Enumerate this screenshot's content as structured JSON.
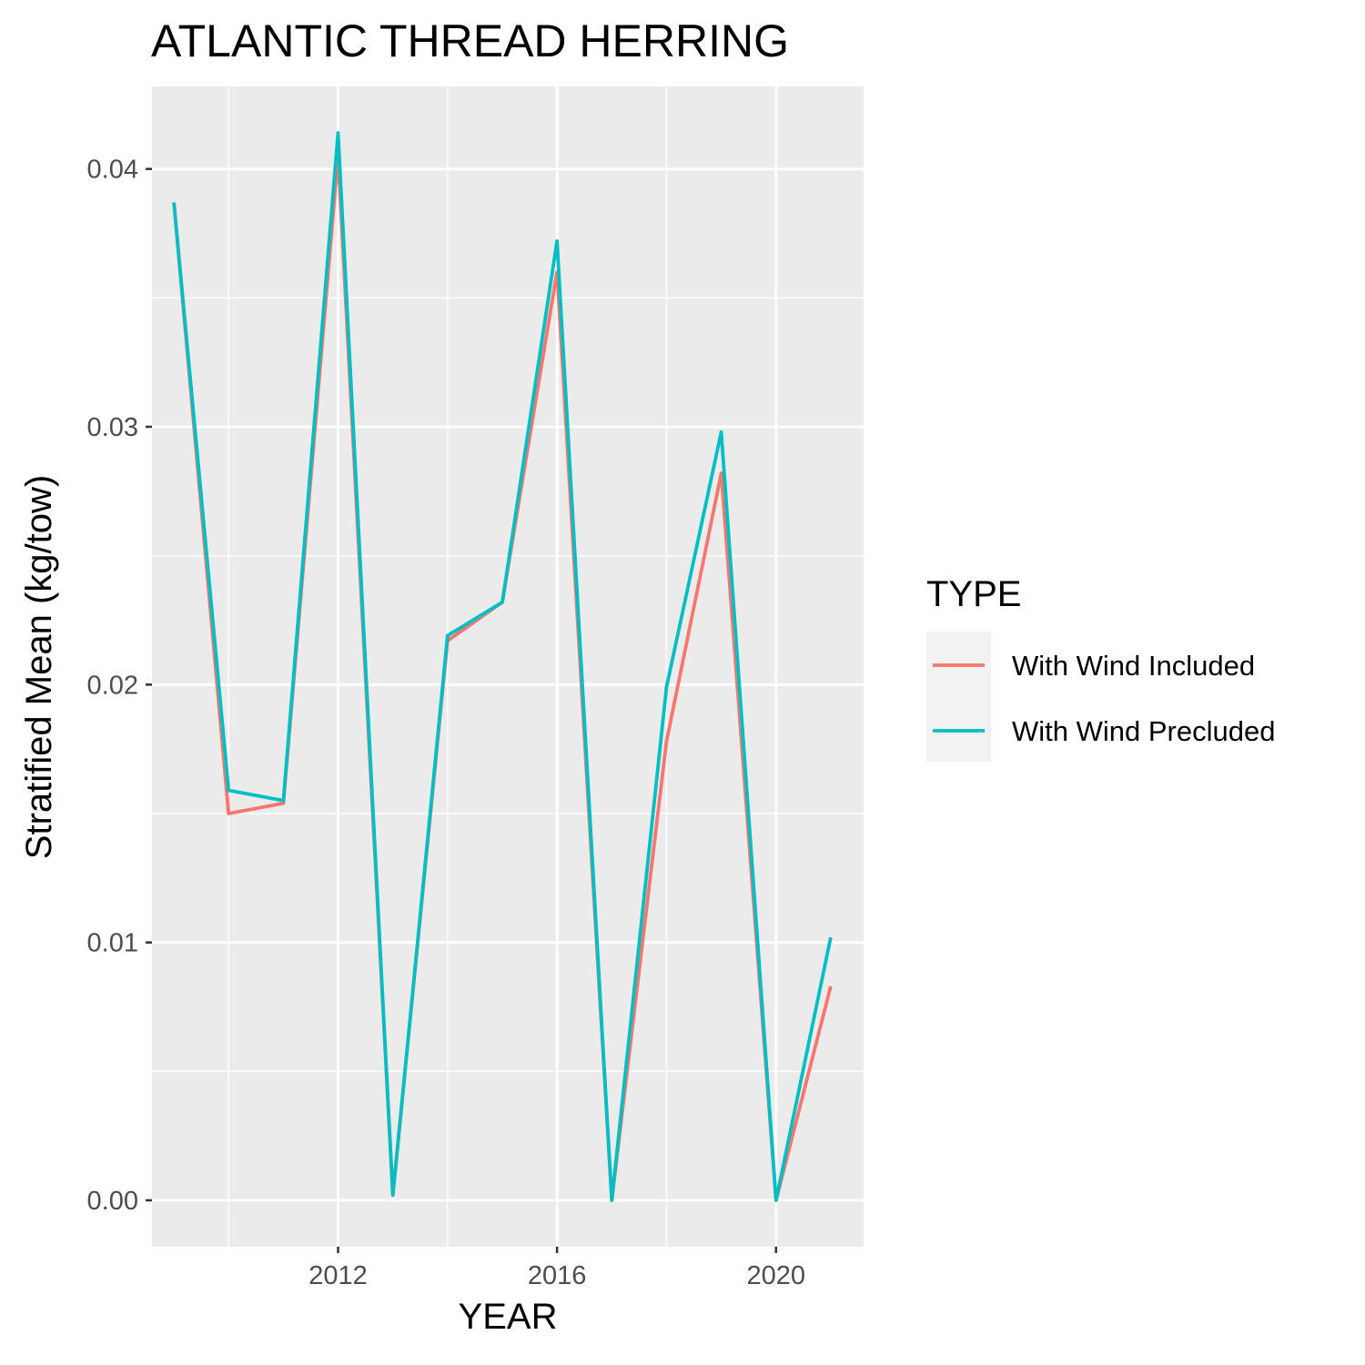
{
  "chart_data": {
    "type": "line",
    "title": "ATLANTIC THREAD HERRING",
    "xlabel": "YEAR",
    "ylabel": "Stratified Mean (kg/tow)",
    "xlim": [
      2008.6,
      2021.6
    ],
    "ylim": [
      -0.0018,
      0.0432
    ],
    "x_ticks": [
      2012,
      2016,
      2020
    ],
    "y_ticks": [
      0.0,
      0.01,
      0.02,
      0.03,
      0.04
    ],
    "x_tick_labels": [
      "2012",
      "2016",
      "2020"
    ],
    "y_tick_labels": [
      "0.00",
      "0.01",
      "0.02",
      "0.03",
      "0.04"
    ],
    "grid": true,
    "legend": {
      "title": "TYPE",
      "placement": "right"
    },
    "x": [
      2009,
      2010,
      2011,
      2012,
      2013,
      2014,
      2015,
      2016,
      2017,
      2018,
      2019,
      2020,
      2021
    ],
    "series": [
      {
        "name": "With Wind Included",
        "color": "#F8766D",
        "values": [
          0.0387,
          0.015,
          0.0154,
          0.0405,
          0.0002,
          0.0217,
          0.0232,
          0.036,
          0.0,
          0.0178,
          0.0282,
          0.0,
          0.0083
        ]
      },
      {
        "name": "With Wind Precluded",
        "color": "#00BFC4",
        "values": [
          0.0387,
          0.0159,
          0.0155,
          0.0414,
          0.0002,
          0.0219,
          0.0232,
          0.0372,
          0.0,
          0.0199,
          0.0298,
          0.0,
          0.0102
        ]
      }
    ]
  }
}
